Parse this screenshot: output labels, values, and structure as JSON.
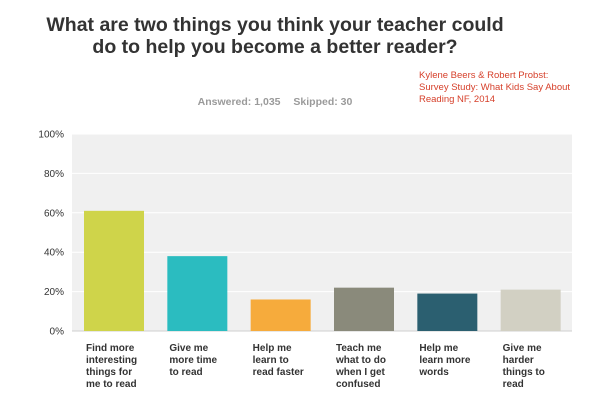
{
  "chart_data": {
    "type": "bar",
    "title": "What are two things you think your teacher could do to help you become a better reader?",
    "answered": "Answered: 1,035",
    "skipped": "Skipped: 30",
    "citation": "Kylene Beers & Robert Probst:\nSurvey Study: What Kids Say About Reading NF, 2014",
    "categories": [
      "Find more interesting things for me to read",
      "Give me more time to read",
      "Help me learn to read faster",
      "Teach me what to do when I get confused",
      "Help me learn more words",
      "Give me harder things to read"
    ],
    "values": [
      61,
      38,
      16,
      22,
      19,
      21
    ],
    "ylim": [
      0,
      100
    ],
    "yticks": [
      "0%",
      "20%",
      "40%",
      "60%",
      "80%",
      "100%"
    ],
    "grid": true,
    "colors": [
      "#cfd44a",
      "#2bbcc0",
      "#f6ab3c",
      "#8a8a7b",
      "#2b5f70",
      "#d2d0c3"
    ],
    "plot_background": "#f0f0f0"
  }
}
